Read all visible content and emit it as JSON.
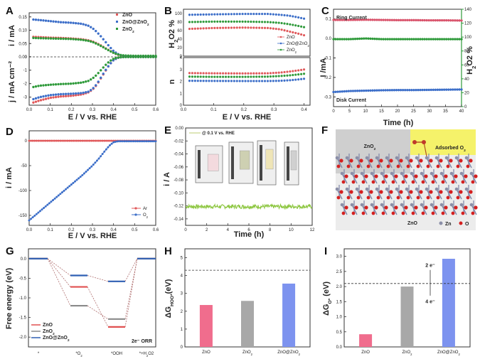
{
  "colors": {
    "ZnO": "#e0585a",
    "ZnO@ZnO2": "#3d6fc9",
    "ZnO2": "#2e9a3a",
    "ring": "#d9546c",
    "disk": "#3d6fc9",
    "h2o2": "#2e9a3a",
    "ar": "#e0585a",
    "o2": "#3d6fc9",
    "stability": "#8cc63f",
    "bar_ZnO": "#f06d8d",
    "bar_ZnO2": "#a8a8a8",
    "bar_ZnO@ZnO2": "#7d93ef"
  },
  "chart_data": [
    {
      "panel": "A",
      "type": "scatter",
      "xlabel": "E / V vs. RHE",
      "ylabel_top": "i / mA",
      "ylabel_bottom": "j / mA cm-2",
      "xlim": [
        0.0,
        0.6
      ],
      "xticks": [
        "0.0",
        "0.1",
        "0.2",
        "0.3",
        "0.4",
        "0.5",
        "0.6"
      ],
      "ylim_top": [
        0.0,
        0.16
      ],
      "yticks_top": [
        "0.00",
        "0.05",
        "0.10",
        "0.15"
      ],
      "ylim_bottom": [
        -3.6,
        0.2
      ],
      "yticks_bottom": [
        "0",
        "-1",
        "-2",
        "-3"
      ],
      "legend": [
        "ZnO",
        "ZnO@ZnO2",
        "ZnO2"
      ],
      "legend_position": "top-right",
      "x": [
        0.02,
        0.05,
        0.1,
        0.15,
        0.2,
        0.25,
        0.28,
        0.3,
        0.32,
        0.34,
        0.36,
        0.38,
        0.4,
        0.42,
        0.44,
        0.46,
        0.5,
        0.55,
        0.6
      ],
      "series_ring": [
        {
          "name": "ZnO",
          "values": [
            0.075,
            0.074,
            0.072,
            0.071,
            0.069,
            0.066,
            0.062,
            0.058,
            0.051,
            0.043,
            0.033,
            0.024,
            0.015,
            0.008,
            0.004,
            0.002,
            0.001,
            0.001,
            0.001
          ]
        },
        {
          "name": "ZnO@ZnO2",
          "values": [
            0.14,
            0.138,
            0.134,
            0.13,
            0.128,
            0.124,
            0.117,
            0.108,
            0.094,
            0.077,
            0.058,
            0.039,
            0.022,
            0.011,
            0.005,
            0.003,
            0.002,
            0.002,
            0.002
          ]
        },
        {
          "name": "ZnO2",
          "values": [
            0.071,
            0.07,
            0.069,
            0.068,
            0.067,
            0.064,
            0.06,
            0.056,
            0.049,
            0.041,
            0.032,
            0.023,
            0.015,
            0.009,
            0.006,
            0.005,
            0.004,
            0.004,
            0.004
          ]
        }
      ],
      "series_disk": [
        {
          "name": "ZnO",
          "values": [
            -3.4,
            -3.25,
            -3.05,
            -2.95,
            -2.9,
            -2.8,
            -2.65,
            -2.45,
            -2.1,
            -1.6,
            -1.1,
            -0.6,
            -0.25,
            -0.08,
            -0.03,
            -0.02,
            -0.02,
            -0.02,
            -0.02
          ]
        },
        {
          "name": "ZnO@ZnO2",
          "values": [
            -3.15,
            -3.0,
            -2.85,
            -2.78,
            -2.75,
            -2.7,
            -2.6,
            -2.4,
            -2.05,
            -1.55,
            -1.05,
            -0.6,
            -0.25,
            -0.08,
            -0.03,
            -0.02,
            -0.02,
            -0.02,
            -0.02
          ]
        },
        {
          "name": "ZnO2",
          "values": [
            -2.25,
            -2.15,
            -2.08,
            -2.03,
            -2.0,
            -1.92,
            -1.8,
            -1.62,
            -1.35,
            -1.0,
            -0.65,
            -0.35,
            -0.15,
            -0.06,
            -0.03,
            -0.02,
            -0.02,
            -0.02,
            -0.02
          ]
        }
      ]
    },
    {
      "panel": "B",
      "type": "line",
      "xlabel": "E / V vs. RHE",
      "xlim": [
        0.0,
        0.42
      ],
      "xticks": [
        "0.0",
        "0.1",
        "0.2",
        "0.3",
        "0.4"
      ],
      "top": {
        "ylabel": "H2O2 %",
        "ylim": [
          0,
          105
        ],
        "yticks": [
          "0",
          "20",
          "40",
          "60",
          "80",
          "100"
        ],
        "legend": [
          "ZnO",
          "ZnO@ZnO2",
          "ZnO2"
        ],
        "legend_position": "bottom-right",
        "x": [
          0.02,
          0.1,
          0.2,
          0.28,
          0.32,
          0.35,
          0.38,
          0.4
        ],
        "series": [
          {
            "name": "ZnO",
            "values": [
              64,
              66,
              67,
              66,
              63,
              58,
              53,
              49
            ]
          },
          {
            "name": "ZnO@ZnO2",
            "values": [
              97,
              98,
              99,
              99,
              97,
              95,
              91,
              88
            ]
          },
          {
            "name": "ZnO2",
            "values": [
              80,
              81,
              81,
              80,
              78,
              75,
              71,
              68
            ]
          }
        ]
      },
      "bottom": {
        "ylabel": "n",
        "ylim": [
          0,
          4
        ],
        "yticks": [
          "0",
          "1",
          "2",
          "3",
          "4"
        ],
        "x": [
          0.02,
          0.1,
          0.2,
          0.28,
          0.32,
          0.35,
          0.38,
          0.4
        ],
        "series": [
          {
            "name": "ZnO",
            "values": [
              2.7,
              2.68,
              2.67,
              2.68,
              2.74,
              2.82,
              2.92,
              3.0
            ]
          },
          {
            "name": "ZnO@ZnO2",
            "values": [
              2.05,
              2.04,
              2.03,
              2.03,
              2.05,
              2.09,
              2.16,
              2.22
            ]
          },
          {
            "name": "ZnO2",
            "values": [
              2.4,
              2.38,
              2.38,
              2.4,
              2.45,
              2.5,
              2.58,
              2.64
            ]
          }
        ]
      }
    },
    {
      "panel": "C",
      "type": "scatter",
      "xlabel": "Time (h)",
      "ylabel_left": "I /mA",
      "ylabel_right": "H2O2 %",
      "xlim": [
        0,
        40
      ],
      "xticks": [
        "0",
        "5",
        "10",
        "15",
        "20",
        "25",
        "30",
        "35",
        "40"
      ],
      "ylim_left": [
        -0.35,
        0.15
      ],
      "yticks_left": [
        "0.1",
        "0.0",
        "-0.1",
        "-0.2",
        "-0.3"
      ],
      "ylim_right": [
        0,
        140
      ],
      "yticks_right": [
        "0",
        "20",
        "40",
        "60",
        "80",
        "100",
        "120",
        "140"
      ],
      "x": [
        0,
        5,
        10,
        15,
        20,
        25,
        30,
        35,
        40
      ],
      "series": [
        {
          "name": "Ring Current",
          "axis": "left",
          "values": [
            0.095,
            0.095,
            0.096,
            0.095,
            0.094,
            0.094,
            0.093,
            0.093,
            0.092
          ]
        },
        {
          "name": "H2O2 %",
          "axis": "right",
          "values": [
            97,
            97,
            98,
            97,
            97,
            97,
            97,
            97,
            97
          ]
        },
        {
          "name": "Disk Current",
          "axis": "left",
          "values": [
            -0.275,
            -0.27,
            -0.268,
            -0.266,
            -0.265,
            -0.265,
            -0.264,
            -0.263,
            -0.262
          ]
        }
      ],
      "annotations": [
        "Ring Current",
        "Disk Current"
      ]
    },
    {
      "panel": "D",
      "type": "line",
      "xlabel": "E / V vs. RHE",
      "ylabel": "i / mA",
      "xlim": [
        0.0,
        0.6
      ],
      "xticks": [
        "0.0",
        "0.1",
        "0.2",
        "0.3",
        "0.4",
        "0.5",
        "0.6"
      ],
      "ylim": [
        -170,
        20
      ],
      "yticks": [
        "0",
        "-50",
        "-100",
        "-150"
      ],
      "legend": [
        "Ar",
        "O2"
      ],
      "legend_position": "bottom-right",
      "x": [
        0.0,
        0.05,
        0.1,
        0.15,
        0.2,
        0.25,
        0.3,
        0.33,
        0.36,
        0.38,
        0.4,
        0.42,
        0.45,
        0.5,
        0.55,
        0.6
      ],
      "series": [
        {
          "name": "Ar",
          "values": [
            0,
            0,
            0,
            0,
            0,
            0,
            0,
            0,
            0,
            0,
            0,
            0,
            0,
            0,
            0,
            0
          ]
        },
        {
          "name": "O2",
          "values": [
            -160,
            -142,
            -124,
            -106,
            -88,
            -70,
            -50,
            -36,
            -20,
            -10,
            -3,
            -1,
            -1,
            -1,
            -1,
            -1
          ]
        }
      ]
    },
    {
      "panel": "E",
      "type": "line",
      "xlabel": "Time (h)",
      "ylabel": "i / A",
      "xlim": [
        0,
        12
      ],
      "xticks": [
        "0",
        "2",
        "4",
        "6",
        "8",
        "10",
        "12"
      ],
      "ylim": [
        -0.15,
        0.0
      ],
      "yticks": [
        "0.00",
        "-0.02",
        "-0.04",
        "-0.06",
        "-0.08",
        "-0.10",
        "-0.12",
        "-0.14"
      ],
      "legend": [
        "@ 0.1 V vs. RHE"
      ],
      "legend_position": "top-left",
      "series": [
        {
          "name": "@ 0.1 V vs. RHE",
          "mean": -0.121,
          "noise": 0.003
        }
      ]
    },
    {
      "panel": "G",
      "type": "line",
      "ylabel": "Free energy (eV)",
      "ylim": [
        -2.25,
        0.25
      ],
      "yticks": [
        "0.0",
        "-0.5",
        "-1.0",
        "-1.5",
        "-2.0"
      ],
      "categories": [
        "*",
        "*O2",
        "*OOH",
        "*+H2O2"
      ],
      "legend": [
        "ZnO",
        "ZnO2",
        "ZnO@ZnO2"
      ],
      "legend_position": "bottom-left",
      "annotation": "2e- ORR",
      "series": [
        {
          "name": "ZnO",
          "values": [
            0.0,
            -0.72,
            -1.74,
            0.0
          ]
        },
        {
          "name": "ZnO2",
          "values": [
            0.0,
            -1.2,
            -1.54,
            0.0
          ]
        },
        {
          "name": "ZnO@ZnO2",
          "values": [
            0.0,
            -0.43,
            -0.58,
            0.0
          ]
        }
      ]
    },
    {
      "panel": "H",
      "type": "bar",
      "ylabel": "ΔG_HOO* (eV)",
      "categories": [
        "ZnO",
        "ZnO2",
        "ZnO@ZnO2"
      ],
      "values": [
        2.35,
        2.58,
        3.55
      ],
      "ylim": [
        0,
        5.5
      ],
      "yticks": [
        "0",
        "1",
        "2",
        "3",
        "4",
        "5"
      ],
      "reference_line": 4.3
    },
    {
      "panel": "I",
      "type": "bar",
      "ylabel": "ΔG_O* (eV)",
      "categories": [
        "ZnO",
        "ZnO2",
        "ZnO@ZnO2"
      ],
      "values": [
        0.42,
        2.0,
        2.92
      ],
      "ylim": [
        0,
        3.25
      ],
      "yticks": [
        "0.0",
        "0.5",
        "1.0",
        "1.5",
        "2.0",
        "2.5",
        "3.0"
      ],
      "reference_line": 2.1,
      "annotations": [
        "2 e-",
        "4 e-"
      ]
    }
  ],
  "panel_F": {
    "labels": {
      "top_left": "ZnO2",
      "top_right": "Adsorbed O2",
      "bottom": "ZnO"
    },
    "legend": [
      "Zn",
      "O"
    ]
  },
  "panel_letters": [
    "A",
    "B",
    "C",
    "D",
    "E",
    "F",
    "G",
    "H",
    "I"
  ]
}
